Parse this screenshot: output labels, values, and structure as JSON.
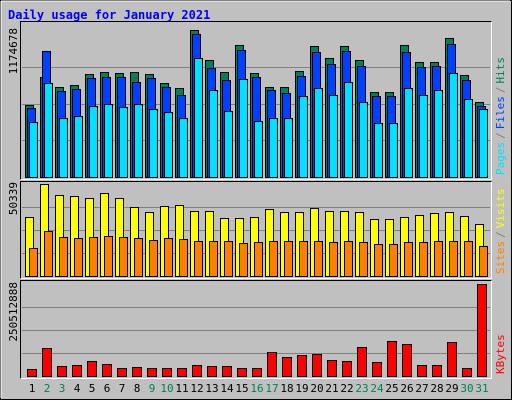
{
  "title": "Daily usage for January 2021",
  "legend_separator": "/",
  "chart_data": [
    {
      "type": "bar",
      "ylim": [
        0,
        1174678
      ],
      "yticks": [
        1174678
      ],
      "series": [
        {
          "name": "Hits",
          "color": "#00805c",
          "values": [
            575000,
            799000,
            719000,
            735000,
            823000,
            839000,
            831000,
            839000,
            823000,
            751000,
            711000,
            1174678,
            935000,
            839000,
            1055000,
            831000,
            719000,
            719000,
            847000,
            1047000,
            951000,
            1047000,
            935000,
            679000,
            679000,
            1055000,
            919000,
            919000,
            1111000,
            815000,
            599000
          ]
        },
        {
          "name": "Files",
          "color": "#0040ff",
          "values": [
            551000,
            1007000,
            687000,
            703000,
            791000,
            799000,
            799000,
            759000,
            791000,
            719000,
            655000,
            1143000,
            871000,
            775000,
            1015000,
            799000,
            695000,
            671000,
            807000,
            999000,
            903000,
            1007000,
            887000,
            647000,
            647000,
            999000,
            879000,
            887000,
            1063000,
            775000,
            567000
          ]
        },
        {
          "name": "Pages",
          "color": "#00e0ff",
          "values": [
            439000,
            751000,
            471000,
            487000,
            567000,
            583000,
            559000,
            583000,
            543000,
            519000,
            471000,
            951000,
            695000,
            527000,
            783000,
            447000,
            471000,
            471000,
            647000,
            711000,
            655000,
            759000,
            599000,
            431000,
            431000,
            711000,
            655000,
            695000,
            831000,
            623000,
            543000
          ]
        }
      ]
    },
    {
      "type": "bar",
      "ylim": [
        0,
        50339
      ],
      "yticks": [
        50339
      ],
      "series": [
        {
          "name": "Visits",
          "color": "#ffff00",
          "values": [
            32273,
            50339,
            44307,
            43760,
            42666,
            45401,
            42666,
            37743,
            35008,
            38290,
            38837,
            35555,
            35555,
            31726,
            31726,
            32273,
            36649,
            35008,
            35008,
            37196,
            35555,
            35555,
            35008,
            31179,
            31179,
            32273,
            33367,
            34461,
            35008,
            32820,
            28444
          ]
        },
        {
          "name": "Sites",
          "color": "#ff8000",
          "values": [
            15316,
            24615,
            21333,
            20786,
            21333,
            21880,
            21333,
            20786,
            19692,
            20786,
            20239,
            19145,
            19145,
            19145,
            18051,
            18598,
            19145,
            19145,
            19145,
            19145,
            18598,
            19145,
            18598,
            17504,
            17504,
            18598,
            18598,
            19145,
            19145,
            19145,
            16410
          ]
        }
      ]
    },
    {
      "type": "bar",
      "ylim": [
        0,
        250512888
      ],
      "yticks": [
        250512888
      ],
      "categories": [
        "1",
        "2",
        "3",
        "4",
        "5",
        "6",
        "7",
        "8",
        "9",
        "10",
        "11",
        "12",
        "13",
        "14",
        "15",
        "16",
        "17",
        "18",
        "19",
        "20",
        "21",
        "22",
        "23",
        "24",
        "25",
        "26",
        "27",
        "28",
        "29",
        "30",
        "31"
      ],
      "category_colors": [
        "#000000",
        "#00805c",
        "#00805c",
        "#000000",
        "#000000",
        "#000000",
        "#000000",
        "#000000",
        "#00805c",
        "#00805c",
        "#000000",
        "#000000",
        "#000000",
        "#000000",
        "#000000",
        "#00805c",
        "#00805c",
        "#000000",
        "#000000",
        "#000000",
        "#000000",
        "#000000",
        "#00805c",
        "#00805c",
        "#000000",
        "#000000",
        "#000000",
        "#000000",
        "#000000",
        "#00805c",
        "#00805c"
      ],
      "series": [
        {
          "name": "KBytes",
          "color": "#ff0000",
          "values": [
            19061000,
            76243000,
            27230000,
            29953000,
            40845000,
            32676000,
            21784000,
            24507000,
            21784000,
            21784000,
            21784000,
            29953000,
            27230000,
            27230000,
            21784000,
            21784000,
            65351000,
            51736000,
            57182000,
            59905000,
            43568000,
            40845000,
            78966000,
            38122000,
            95304000,
            87135000,
            29953000,
            29953000,
            92581000,
            21784000,
            250512888
          ]
        }
      ]
    }
  ]
}
